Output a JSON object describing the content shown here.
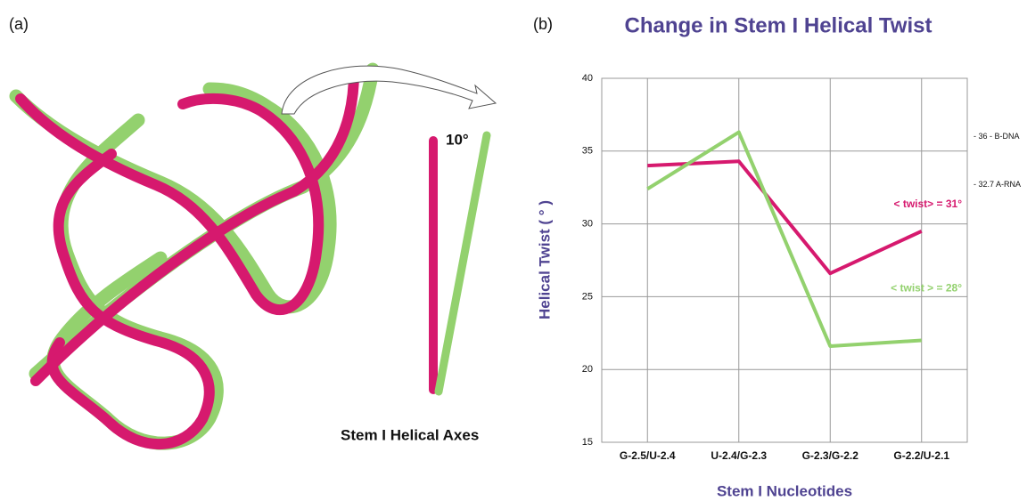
{
  "panel_a": {
    "label": "(a)",
    "angle_label": "10°",
    "caption": "Stem I Helical Axes"
  },
  "chart_data": {
    "type": "line",
    "panel_label": "(b)",
    "title": "Change in Stem I Helical Twist",
    "x_label": "Stem I Nucleotides",
    "y_label": "Helical Twist ( ° )",
    "categories": [
      "G-2.5/U-2.4",
      "U-2.4/G-2.3",
      "G-2.3/G-2.2",
      "G-2.2/U-2.1"
    ],
    "series": [
      {
        "name": "< twist> = 31°",
        "color": "#d6196e",
        "values": [
          34.0,
          34.3,
          26.6,
          29.5
        ]
      },
      {
        "name": "< twist > =  28°",
        "color": "#93d16e",
        "values": [
          32.4,
          36.3,
          21.6,
          22.0
        ]
      }
    ],
    "reference_lines": [
      {
        "value": 36,
        "label": "- 36 - B-DNA"
      },
      {
        "value": 32.7,
        "label": "- 32.7 A-RNA"
      }
    ],
    "ylim": [
      15,
      40
    ],
    "yticks": [
      15,
      20,
      25,
      30,
      35,
      40
    ],
    "grid": true
  }
}
